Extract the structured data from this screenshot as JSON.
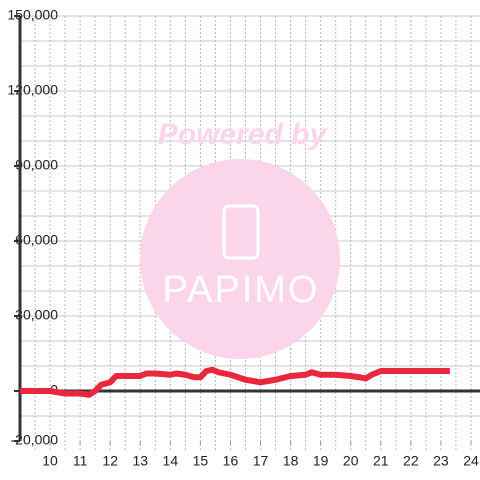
{
  "chart_data": {
    "type": "line",
    "watermark": {
      "title": "Powered by",
      "brand": "PAPIMO"
    },
    "x": [
      9.0,
      10.0,
      10.5,
      11.0,
      11.3,
      11.5,
      11.7,
      12.0,
      12.2,
      12.5,
      13.0,
      13.2,
      13.5,
      14.0,
      14.2,
      14.5,
      14.8,
      15.0,
      15.2,
      15.4,
      15.6,
      16.0,
      16.5,
      17.0,
      17.5,
      18.0,
      18.5,
      18.7,
      19.0,
      19.5,
      20.0,
      20.3,
      20.5,
      20.7,
      21.0,
      22.0,
      23.3
    ],
    "series": [
      {
        "color": "#e8283c",
        "values": [
          0,
          0,
          -1000,
          -1000,
          -1500,
          0,
          2500,
          3500,
          6000,
          6000,
          6000,
          7000,
          7000,
          6500,
          7000,
          6500,
          5500,
          5500,
          8000,
          8500,
          7500,
          6500,
          4500,
          3500,
          4500,
          6000,
          6500,
          7500,
          6500,
          6500,
          6000,
          5500,
          5000,
          6500,
          8000,
          8000,
          8000
        ]
      }
    ],
    "xlim": [
      9,
      24.3
    ],
    "xticks": [
      10,
      11,
      12,
      13,
      14,
      15,
      16,
      17,
      18,
      19,
      20,
      21,
      22,
      23,
      24
    ],
    "x_gridlines": [
      9.5,
      10,
      10.5,
      11,
      11.5,
      12,
      12.5,
      13,
      13.5,
      14,
      14.5,
      15,
      15.5,
      16,
      16.5,
      17,
      17.5,
      18,
      18.5,
      19,
      19.5,
      20,
      20.5,
      21,
      21.5,
      22,
      22.5,
      23,
      23.5,
      24
    ],
    "ylim": [
      -20000,
      150000
    ],
    "yticks": [
      {
        "value": -20000,
        "label": "-20,000"
      },
      0,
      {
        "value": 30000,
        "label": "30,000"
      },
      {
        "value": 60000,
        "label": "60,000"
      },
      {
        "value": 90000,
        "label": "90,000"
      },
      {
        "value": 120000,
        "label": "120,000"
      },
      {
        "value": 150000,
        "label": "150,000"
      }
    ],
    "y_gridlines": [
      -10000,
      10000,
      20000,
      30000,
      40000,
      50000,
      60000,
      70000,
      80000,
      90000,
      100000,
      110000,
      120000,
      130000,
      140000,
      150000
    ],
    "grid": true
  }
}
